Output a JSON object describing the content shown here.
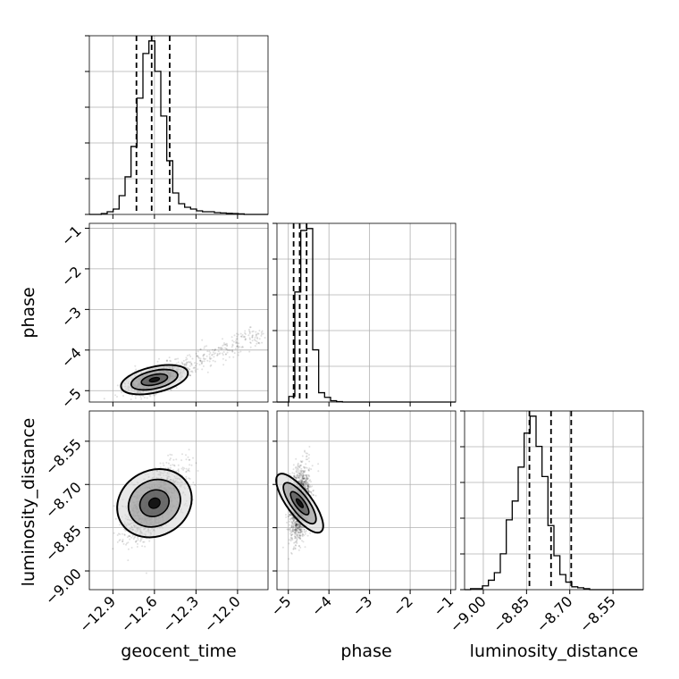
{
  "chart_data": {
    "type": "corner",
    "parameters": [
      "geocent_time",
      "phase",
      "luminosity_distance"
    ],
    "ranges": {
      "geocent_time": [
        -13.07,
        -11.78
      ],
      "phase": [
        -5.28,
        -0.88
      ],
      "luminosity_distance": [
        -9.065,
        -8.445
      ]
    },
    "ticks": {
      "geocent_time": {
        "values": [
          -12.9,
          -12.6,
          -12.3,
          -12.0
        ],
        "labels": [
          "−12.9",
          "−12.6",
          "−12.3",
          "−12.0"
        ]
      },
      "phase": {
        "values": [
          -5,
          -4,
          -3,
          -2,
          -1
        ],
        "labels": [
          "−5",
          "−4",
          "−3",
          "−2",
          "−1"
        ]
      },
      "luminosity_distance": {
        "values": [
          -9.0,
          -8.85,
          -8.7,
          -8.55
        ],
        "labels": [
          "−9.00",
          "−8.85",
          "−8.70",
          "−8.55"
        ]
      }
    },
    "quantiles": {
      "geocent_time": [
        -12.73,
        -12.62,
        -12.49
      ],
      "phase": [
        -4.87,
        -4.72,
        -4.55
      ],
      "luminosity_distance": [
        -8.84,
        -8.765,
        -8.695
      ]
    },
    "histograms": {
      "geocent_time": {
        "edges": [
          -13.07,
          -13.027,
          -12.984,
          -12.941,
          -12.898,
          -12.855,
          -12.812,
          -12.769,
          -12.726,
          -12.683,
          -12.64,
          -12.597,
          -12.554,
          -12.511,
          -12.468,
          -12.425,
          -12.382,
          -12.339,
          -12.296,
          -12.253,
          -12.21,
          -12.167,
          -12.124,
          -12.081,
          -12.038,
          -11.995,
          -11.952,
          -11.909,
          -11.866,
          -11.823,
          -11.78
        ],
        "counts": [
          0,
          0,
          0.5,
          1.5,
          3,
          10.5,
          21,
          38,
          65,
          90,
          97,
          80,
          55,
          30,
          12,
          6,
          4,
          3,
          2,
          1.5,
          1.5,
          1,
          0.8,
          0.6,
          0.5,
          0.3,
          0,
          0,
          0,
          0
        ]
      },
      "phase": {
        "edges": [
          -5.28,
          -5.133,
          -4.987,
          -4.84,
          -4.693,
          -4.547,
          -4.4,
          -4.253,
          -4.107,
          -3.96,
          -3.813,
          -3.667,
          -3.52,
          -3.373,
          -3.227,
          -3.08,
          -2.933,
          -2.787,
          -2.64,
          -2.493,
          -2.347,
          -2.2,
          -2.053,
          -1.907,
          -1.76,
          -1.613,
          -1.467,
          -1.32,
          -1.173,
          -1.027,
          -0.88
        ],
        "counts": [
          0,
          0,
          3,
          59,
          92,
          93,
          28,
          5,
          2.5,
          0.7,
          0.2,
          0,
          0,
          0,
          0,
          0,
          0,
          0,
          0,
          0,
          0,
          0,
          0,
          0,
          0,
          0,
          0,
          0,
          0,
          0
        ]
      },
      "luminosity_distance": {
        "edges": [
          -9.065,
          -9.0443,
          -9.0237,
          -9.003,
          -8.9823,
          -8.9617,
          -8.941,
          -8.9203,
          -8.8997,
          -8.879,
          -8.8583,
          -8.8377,
          -8.817,
          -8.7963,
          -8.7757,
          -8.755,
          -8.7343,
          -8.7137,
          -8.693,
          -8.6723,
          -8.6517,
          -8.631,
          -8.6103,
          -8.5897,
          -8.569,
          -8.5483,
          -8.5277,
          -8.507,
          -8.4863,
          -8.4657,
          -8.445
        ],
        "counts": [
          0,
          0.5,
          0.5,
          2,
          5,
          9,
          19,
          37,
          47,
          65,
          83,
          92,
          76,
          60,
          34,
          18,
          8,
          4,
          1.5,
          1,
          0.5,
          0,
          0,
          0,
          0,
          0,
          0,
          0,
          0,
          0
        ]
      }
    },
    "scatter_centers": {
      "geocent_time|phase": [
        -12.6,
        -4.73
      ],
      "geocent_time|luminosity_distance": [
        -12.6,
        -8.765
      ],
      "phase|luminosity_distance": [
        -4.72,
        -8.765
      ]
    },
    "grid": true
  }
}
